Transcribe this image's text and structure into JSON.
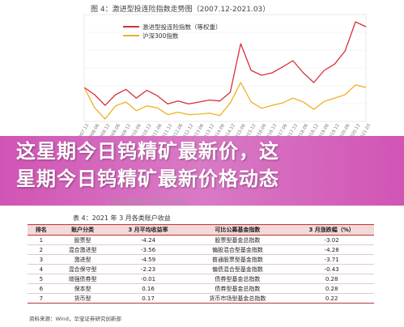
{
  "chart_data": {
    "type": "line",
    "title": "图 4：激进型投连险指数走势图（2007.12-2021.03）",
    "series": [
      {
        "name": "激进型投连险指数（等权重）",
        "color": "#d6303a",
        "x": [
          "2007.12",
          "2008.06",
          "2008.12",
          "2009.06",
          "2009.12",
          "2010.06",
          "2010.12",
          "2011.06",
          "2011.12",
          "2012.06",
          "2012.12",
          "2013.06",
          "2013.12",
          "2014.06",
          "2014.12",
          "2015.06",
          "2015.12",
          "2016.06",
          "2016.12",
          "2017.06",
          "2017.12",
          "2018.06",
          "2018.12",
          "2019.06",
          "2019.12",
          "2020.06",
          "2020.12",
          "2021.03"
        ],
        "values": [
          1.0,
          0.85,
          0.63,
          0.85,
          0.96,
          0.78,
          0.94,
          0.83,
          0.66,
          0.72,
          0.66,
          0.7,
          0.74,
          0.72,
          0.9,
          1.9,
          1.35,
          1.25,
          1.3,
          1.42,
          1.55,
          1.3,
          1.1,
          1.35,
          1.48,
          1.75,
          2.35,
          2.25
        ]
      },
      {
        "name": "沪深300指数",
        "color": "#f0b020",
        "x": [
          "2007.12",
          "2008.06",
          "2008.12",
          "2009.06",
          "2009.12",
          "2010.06",
          "2010.12",
          "2011.06",
          "2011.12",
          "2012.06",
          "2012.12",
          "2013.06",
          "2013.12",
          "2014.06",
          "2014.12",
          "2015.06",
          "2015.12",
          "2016.06",
          "2016.12",
          "2017.06",
          "2017.12",
          "2018.06",
          "2018.12",
          "2019.06",
          "2019.12",
          "2020.06",
          "2020.12",
          "2021.03"
        ],
        "values": [
          1.0,
          0.58,
          0.35,
          0.62,
          0.7,
          0.52,
          0.62,
          0.58,
          0.44,
          0.49,
          0.44,
          0.45,
          0.47,
          0.42,
          0.68,
          1.1,
          0.7,
          0.57,
          0.63,
          0.68,
          0.78,
          0.7,
          0.55,
          0.71,
          0.78,
          0.85,
          1.05,
          1.0
        ]
      }
    ],
    "legend_position": "top",
    "grid": true
  },
  "headline": {
    "line1": "这星期今日钨精矿最新价，这",
    "line2": "星期今日钨精矿最新价格动态"
  },
  "faint_caption": "3 月各类账户排名见下表。",
  "table": {
    "title": "表 4：2021 年 3 月各类账户收益",
    "headers": [
      "排名",
      "账户分类",
      "3 月平均收益率",
      "可比公募基金指数",
      "3 月涨跌幅（%）"
    ],
    "rows": [
      [
        "1",
        "股票型",
        "-4.24",
        "股票型基金总指数",
        "-3.02"
      ],
      [
        "2",
        "混合激进型",
        "-3.56",
        "偏股混合型基金指数",
        "-4.28"
      ],
      [
        "3",
        "激进型",
        "-4.59",
        "普通股票型基金指数",
        "-3.71"
      ],
      [
        "4",
        "混合保守型",
        "-2.23",
        "偏债混合型基金指数",
        "-0.43"
      ],
      [
        "5",
        "增强债券型",
        "-0.01",
        "债券型基金总指数",
        "0.28"
      ],
      [
        "6",
        "保本型",
        "0.16",
        "债券型基金总指数",
        "0.28"
      ],
      [
        "7",
        "货币型",
        "0.17",
        "货币市场型基金总指数",
        "0.22"
      ]
    ]
  },
  "source": "资料来源：Wind，华宝证券研究创新部"
}
